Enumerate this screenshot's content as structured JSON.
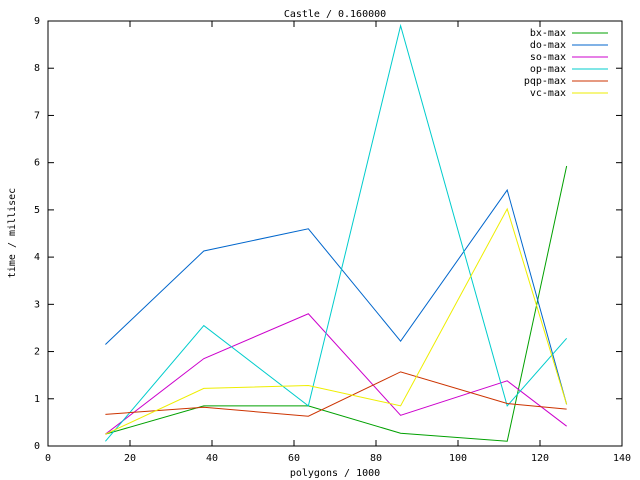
{
  "chart_data": {
    "type": "line",
    "title": "Castle / 0.160000",
    "x_label": "polygons / 1000",
    "y_label": "time / millisec",
    "x": [
      14,
      38,
      63.5,
      86,
      112,
      126.5
    ],
    "series": [
      {
        "name": "bx-max",
        "color": "#00a000",
        "values": [
          0.25,
          0.85,
          0.85,
          0.27,
          0.1,
          5.93
        ]
      },
      {
        "name": "do-max",
        "color": "#0066cc",
        "values": [
          2.15,
          4.13,
          4.6,
          2.22,
          5.42,
          0.88
        ]
      },
      {
        "name": "so-max",
        "color": "#cc00cc",
        "values": [
          0.25,
          1.85,
          2.8,
          0.65,
          1.38,
          0.42
        ]
      },
      {
        "name": "op-max",
        "color": "#00cccc",
        "values": [
          0.1,
          2.55,
          0.85,
          8.9,
          0.85,
          2.28
        ]
      },
      {
        "name": "pqp-max",
        "color": "#cc3300",
        "values": [
          0.67,
          0.82,
          0.63,
          1.57,
          0.9,
          0.78
        ]
      },
      {
        "name": "vc-max",
        "color": "#eeee00",
        "values": [
          0.25,
          1.22,
          1.28,
          0.85,
          5.02,
          0.88
        ]
      }
    ],
    "xlim": [
      0,
      140
    ],
    "xticks": [
      0,
      20,
      40,
      60,
      80,
      100,
      120,
      140
    ],
    "ylim": [
      0,
      9
    ],
    "yticks": [
      0,
      1,
      2,
      3,
      4,
      5,
      6,
      7,
      8,
      9
    ],
    "legend": "top-right"
  }
}
